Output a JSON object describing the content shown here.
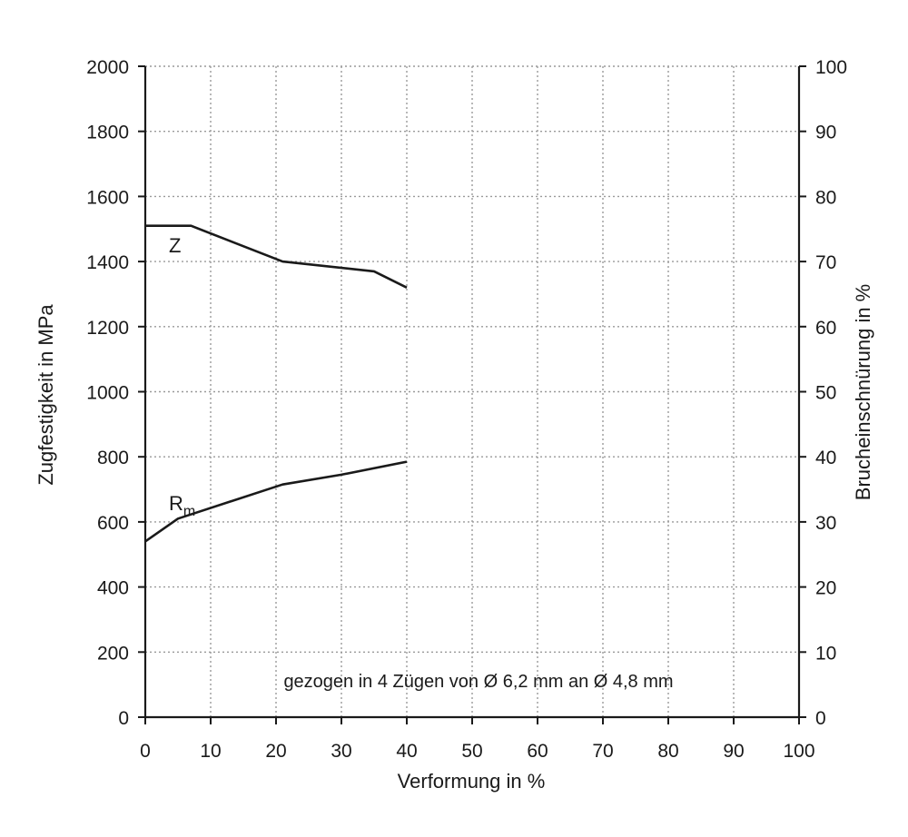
{
  "chart_data": {
    "type": "line",
    "xlabel": "Verformung in %",
    "ylabel": "Zugfestigkeit in MPa",
    "y2label": "Brucheinschnürung in %",
    "xlim": [
      0,
      100
    ],
    "ylim": [
      0,
      2000
    ],
    "y2lim": [
      0,
      100
    ],
    "x_ticks": [
      0,
      10,
      20,
      30,
      40,
      50,
      60,
      70,
      80,
      90,
      100
    ],
    "y_ticks": [
      0,
      200,
      400,
      600,
      800,
      1000,
      1200,
      1400,
      1600,
      1800,
      2000
    ],
    "y2_ticks": [
      0,
      10,
      20,
      30,
      40,
      50,
      60,
      70,
      80,
      90,
      100
    ],
    "grid": true,
    "annotation": "gezogen in 4 Zügen von Ø 6,2 mm an Ø 4,8 mm",
    "series": [
      {
        "name": "Z",
        "axis": "right",
        "x": [
          0,
          7,
          21,
          35,
          40
        ],
        "y": [
          75.5,
          75.5,
          70,
          68.5,
          66
        ]
      },
      {
        "name": "Rm",
        "label_main": "R",
        "label_sub": "m",
        "axis": "left",
        "x": [
          0,
          5,
          21,
          30,
          40
        ],
        "y": [
          540,
          610,
          715,
          745,
          785
        ]
      }
    ],
    "colors": {
      "line": "#1a1a1a",
      "grid": "#9a9a9a",
      "axis": "#1a1a1a"
    }
  }
}
